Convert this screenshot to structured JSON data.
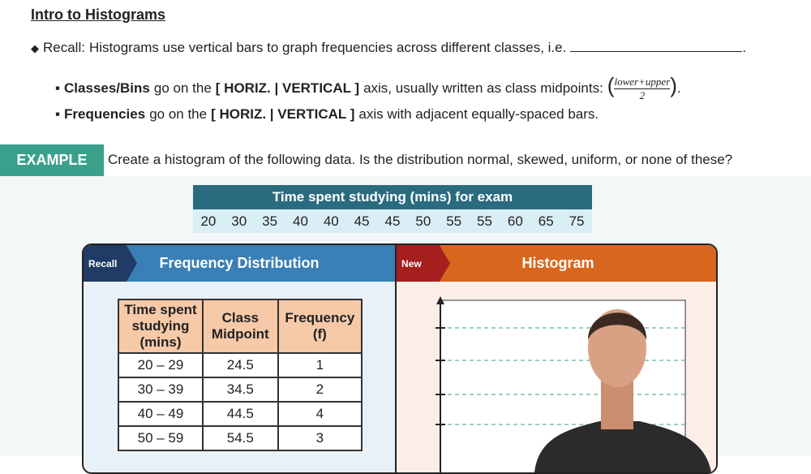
{
  "header": {
    "title": "Intro to Histograms"
  },
  "recall": {
    "label": "Recall:",
    "text": "Histograms use vertical bars to graph frequencies across different classes, i.e.",
    "end": "."
  },
  "bullets": [
    {
      "term": "Classes/Bins",
      "pre": "go on the",
      "choice": "[ HORIZ. | VERTICAL ]",
      "post": "axis, usually written as class midpoints:",
      "numerator": "lower+upper",
      "denominator": "2",
      "end": "."
    },
    {
      "term": "Frequencies",
      "pre": "go on the",
      "choice": "[ HORIZ. | VERTICAL ]",
      "post": "axis with adjacent equally-spaced bars."
    }
  ],
  "example": {
    "label": "EXAMPLE",
    "text": "Create a histogram of the following data. Is the distribution normal, skewed, uniform, or none of these?"
  },
  "data_table": {
    "title": "Time spent studying (mins) for exam",
    "values": [
      20,
      30,
      35,
      40,
      40,
      45,
      45,
      50,
      55,
      55,
      60,
      65,
      75
    ]
  },
  "frequency_panel": {
    "tag": "Recall",
    "title": "Frequency Distribution",
    "columns": [
      "Time spent studying (mins)",
      "Class Midpoint",
      "Frequency (f)"
    ],
    "rows": [
      [
        "20 – 29",
        24.5,
        1
      ],
      [
        "30 – 39",
        34.5,
        2
      ],
      [
        "40 – 49",
        44.5,
        4
      ],
      [
        "50 – 59",
        54.5,
        3
      ]
    ]
  },
  "histogram_panel": {
    "tag": "New",
    "title": "Histogram"
  }
}
